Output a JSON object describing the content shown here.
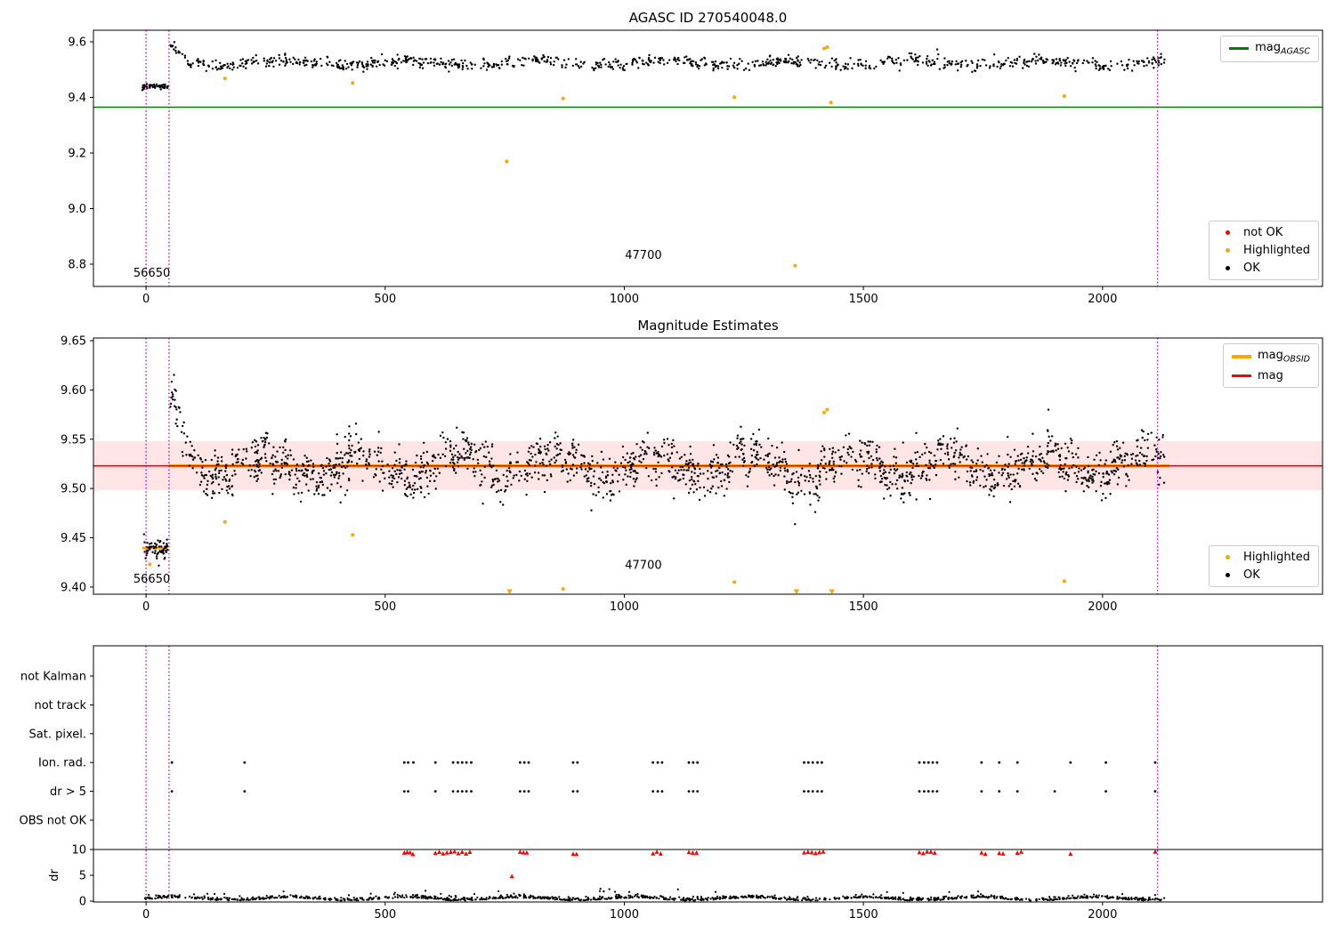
{
  "titles": {
    "top": "AGASC ID 270540048.0",
    "middle": "Magnitude Estimates"
  },
  "colors": {
    "ok": "#000000",
    "highlighted": "#ffa500",
    "not_ok": "#ff0000",
    "mag_agasc": "#008000",
    "mag_obsid": "#ffa500",
    "mag_line": "#ff0000",
    "band": "rgba(255,0,0,0.10)",
    "vline": "#bf00bf",
    "axis": "#000000",
    "bg": "#ffffff"
  },
  "legends": {
    "agasc": {
      "prefix": "mag",
      "sub": "AGASC"
    },
    "top_status": {
      "not_ok": "not OK",
      "highlighted": "Highlighted",
      "ok": "OK"
    },
    "obsid": {
      "prefix": "mag",
      "sub": "OBSID"
    },
    "mag": {
      "label": "mag"
    },
    "mid_status": {
      "highlighted": "Highlighted",
      "ok": "OK"
    }
  },
  "chart_data": [
    {
      "type": "scatter",
      "name": "agasc-mag",
      "title": "AGASC ID 270540048.0",
      "xlim": [
        -110,
        2460
      ],
      "ylim": [
        8.72,
        9.6416
      ],
      "xticks": [
        0,
        500,
        1000,
        1500,
        2000
      ],
      "xtick_labels": [
        "0",
        "500",
        "1000",
        "1500",
        "2000"
      ],
      "yticks": [
        8.8,
        9.0,
        9.2,
        9.4,
        9.6
      ],
      "ytick_labels": [
        "8.8",
        "9.0",
        "9.2",
        "9.4",
        "9.6"
      ],
      "mag_agasc_line": 9.365,
      "vlines": [
        0,
        48,
        2115
      ],
      "annotations": [
        {
          "text": "56650",
          "x": 12,
          "y": 8.768
        },
        {
          "text": "47700",
          "x": 1040,
          "y": 8.832
        }
      ],
      "ok_points": {
        "n": 950,
        "x_min": 48,
        "x_max": 2130,
        "base": 9.524,
        "wave_amp": 0.009,
        "wave_period": 265,
        "wave_phase": 1.2,
        "wave2_amp": 0.004,
        "wave2_period": 53,
        "noise_sd": 0.0105,
        "decay_until": 100,
        "decay_rate": 0.0011,
        "seed": 42
      },
      "ok_start": {
        "n": 55,
        "x_min": -8,
        "x_max": 46,
        "base": 9.44,
        "wave_amp": 0,
        "wave_period": 1,
        "wave_phase": 0,
        "wave2_amp": 0,
        "wave2_period": 1,
        "noise_sd": 0.0045,
        "decay_until": 0,
        "decay_rate": 0,
        "seed": 3
      },
      "highlighted_points": [
        [
          165,
          9.468
        ],
        [
          432,
          9.452
        ],
        [
          754,
          9.17
        ],
        [
          872,
          9.396
        ],
        [
          1230,
          9.401
        ],
        [
          1357,
          8.795
        ],
        [
          1418,
          9.576
        ],
        [
          1424,
          9.581
        ],
        [
          1432,
          9.382
        ],
        [
          1920,
          9.405
        ]
      ]
    },
    {
      "type": "scatter",
      "name": "magnitude-estimates",
      "title": "Magnitude Estimates",
      "xlim": [
        -110,
        2460
      ],
      "ylim": [
        9.3927,
        9.6527
      ],
      "xticks": [
        0,
        500,
        1000,
        1500,
        2000
      ],
      "xtick_labels": [
        "0",
        "500",
        "1000",
        "1500",
        "2000"
      ],
      "yticks": [
        9.4,
        9.45,
        9.5,
        9.55,
        9.6,
        9.65
      ],
      "ytick_labels": [
        "9.40",
        "9.45",
        "9.50",
        "9.55",
        "9.60",
        "9.65"
      ],
      "mag_line": 9.523,
      "band": [
        9.4985,
        9.548
      ],
      "obsid_segments": [
        {
          "x0": -8,
          "x1": 46,
          "y": 9.4395
        },
        {
          "x0": 48,
          "x1": 2140,
          "y": 9.523
        }
      ],
      "vlines": [
        0,
        48,
        2115
      ],
      "annotations": [
        {
          "text": "56650",
          "x": 12,
          "y": 9.408
        },
        {
          "text": "47700",
          "x": 1040,
          "y": 9.422
        }
      ],
      "ok_points": {
        "n": 1900,
        "x_min": 48,
        "x_max": 2130,
        "base": 9.523,
        "wave_amp": 0.0125,
        "wave_period": 205,
        "wave_phase": 0.4,
        "wave2_amp": 0.006,
        "wave2_period": 47,
        "noise_sd": 0.0115,
        "decay_until": 102,
        "decay_rate": 0.0011,
        "seed": 11
      },
      "ok_start": {
        "n": 65,
        "x_min": -8,
        "x_max": 46,
        "base": 9.4385,
        "wave_amp": 0,
        "wave_period": 1,
        "wave_phase": 0,
        "wave2_amp": 0,
        "wave2_period": 1,
        "noise_sd": 0.005,
        "decay_until": 0,
        "decay_rate": 0,
        "seed": 9
      },
      "highlighted_points": [
        [
          8,
          9.423
        ],
        [
          165,
          9.466
        ],
        [
          432,
          9.453
        ],
        [
          872,
          9.398
        ],
        [
          1230,
          9.405
        ],
        [
          1418,
          9.577
        ],
        [
          1424,
          9.58
        ],
        [
          1920,
          9.406
        ]
      ],
      "clipped_low_x": [
        760,
        1360,
        1434
      ],
      "clipped_low_y": 9.3955
    },
    {
      "type": "flags",
      "name": "quality-flags",
      "xlim": [
        -110,
        2460
      ],
      "xticks": [
        0,
        500,
        1000,
        1500,
        2000
      ],
      "xtick_labels": [
        "0",
        "500",
        "1000",
        "1500",
        "2000"
      ],
      "rows": [
        "not Kalman",
        "not track",
        "Sat. pixel.",
        "Ion. rad.",
        "dr > 5",
        "OBS not OK"
      ],
      "dr_ticks": [
        10,
        5,
        0
      ],
      "dr_tick_labels": [
        "10",
        "5",
        "0"
      ],
      "dr_axis_label": "dr",
      "dr_limit_line": 10,
      "vlines": [
        0,
        48,
        2115
      ],
      "ion_rad_x": [
        54,
        206,
        540,
        548,
        559,
        605,
        642,
        652,
        661,
        670,
        680,
        782,
        791,
        800,
        893,
        902,
        1060,
        1070,
        1079,
        1135,
        1144,
        1153,
        1376,
        1385,
        1394,
        1404,
        1413,
        1617,
        1627,
        1636,
        1645,
        1654,
        1747,
        1784,
        1822,
        1933,
        2007,
        2110
      ],
      "dr5_x": [
        54,
        206,
        540,
        548,
        605,
        642,
        652,
        661,
        670,
        680,
        782,
        791,
        800,
        893,
        902,
        1060,
        1070,
        1079,
        1135,
        1144,
        1153,
        1376,
        1385,
        1394,
        1404,
        1413,
        1617,
        1627,
        1636,
        1645,
        1654,
        1747,
        1784,
        1822,
        1900,
        2007,
        2110
      ],
      "dr_red_x": [
        540,
        546,
        552,
        558,
        605,
        613,
        621,
        629,
        637,
        645,
        653,
        661,
        669,
        677,
        782,
        789,
        796,
        893,
        900,
        1060,
        1068,
        1076,
        1135,
        1143,
        1151,
        1376,
        1384,
        1392,
        1400,
        1408,
        1416,
        1617,
        1625,
        1633,
        1641,
        1649,
        1747,
        1755,
        1784,
        1792,
        1822,
        1830,
        1933,
        2110
      ],
      "dr_red_outliers": [
        [
          765,
          4.8
        ]
      ],
      "dr_trace": {
        "n": 1250,
        "x_min": -5,
        "x_max": 2130,
        "base": 0.55,
        "wave_period": 240,
        "noise_sd": 0.28,
        "spike_prob": 0.04,
        "spike_max": 1.5,
        "seed": 21
      }
    }
  ]
}
